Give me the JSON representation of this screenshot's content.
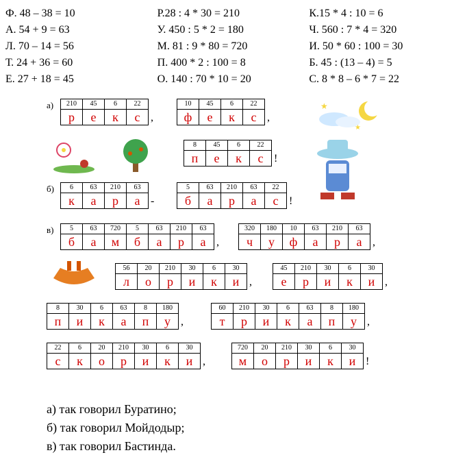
{
  "equations": {
    "col1": [
      "Ф. 48 – 38 = 10",
      "А. 54 + 9 = 63",
      "Л. 70 – 14 = 56",
      "Т. 24 + 36 = 60",
      "Е. 27 + 18 = 45"
    ],
    "col2": [
      "Р.28 : 4 * 30 = 210",
      "У. 450 : 5 * 2 = 180",
      "М. 81 : 9 * 80 = 720",
      "П. 400 * 2 : 100 = 8",
      "О. 140 : 70 * 10 = 20"
    ],
    "col3": [
      "К.15 * 4 : 10 = 6",
      "Ч. 560 : 7 * 4 = 320",
      "И. 50 * 60 : 100 = 30",
      "Б. 45 : (13 – 4) = 5",
      "С. 8 * 8 – 6 * 7 = 22"
    ]
  },
  "labels": {
    "a": "а)",
    "b": "б)",
    "v": "в)"
  },
  "puzzles": {
    "a1": {
      "nums": [
        "210",
        "45",
        "6",
        "22"
      ],
      "lets": [
        "р",
        "е",
        "к",
        "с"
      ],
      "punct": ","
    },
    "a2": {
      "nums": [
        "10",
        "45",
        "6",
        "22"
      ],
      "lets": [
        "ф",
        "е",
        "к",
        "с"
      ],
      "punct": ","
    },
    "a3": {
      "nums": [
        "8",
        "45",
        "6",
        "22"
      ],
      "lets": [
        "п",
        "е",
        "к",
        "с"
      ],
      "punct": "!"
    },
    "b1": {
      "nums": [
        "6",
        "63",
        "210",
        "63"
      ],
      "lets": [
        "к",
        "а",
        "р",
        "а"
      ],
      "punct": "-"
    },
    "b2": {
      "nums": [
        "5",
        "63",
        "210",
        "63",
        "22"
      ],
      "lets": [
        "б",
        "а",
        "р",
        "а",
        "с"
      ],
      "punct": "!"
    },
    "v1": {
      "nums": [
        "5",
        "63",
        "720",
        "5",
        "63",
        "210",
        "63"
      ],
      "lets": [
        "б",
        "а",
        "м",
        "б",
        "а",
        "р",
        "а"
      ],
      "punct": ","
    },
    "v2": {
      "nums": [
        "320",
        "180",
        "10",
        "63",
        "210",
        "63"
      ],
      "lets": [
        "ч",
        "у",
        "ф",
        "а",
        "р",
        "а"
      ],
      "punct": ","
    },
    "v3": {
      "nums": [
        "56",
        "20",
        "210",
        "30",
        "6",
        "30"
      ],
      "lets": [
        "л",
        "о",
        "р",
        "и",
        "к",
        "и"
      ],
      "punct": ","
    },
    "v4": {
      "nums": [
        "45",
        "210",
        "30",
        "6",
        "30"
      ],
      "lets": [
        "е",
        "р",
        "и",
        "к",
        "и"
      ],
      "punct": ","
    },
    "v5": {
      "nums": [
        "8",
        "30",
        "6",
        "63",
        "8",
        "180"
      ],
      "lets": [
        "п",
        "и",
        "к",
        "а",
        "п",
        "у"
      ],
      "punct": ","
    },
    "v6": {
      "nums": [
        "60",
        "210",
        "30",
        "6",
        "63",
        "8",
        "180"
      ],
      "lets": [
        "т",
        "р",
        "и",
        "к",
        "а",
        "п",
        "у"
      ],
      "punct": ","
    },
    "v7": {
      "nums": [
        "22",
        "6",
        "20",
        "210",
        "30",
        "6",
        "30"
      ],
      "lets": [
        "с",
        "к",
        "о",
        "р",
        "и",
        "к",
        "и"
      ],
      "punct": ","
    },
    "v8": {
      "nums": [
        "720",
        "20",
        "210",
        "30",
        "6",
        "30"
      ],
      "lets": [
        "м",
        "о",
        "р",
        "и",
        "к",
        "и"
      ],
      "punct": "!"
    }
  },
  "answers": {
    "a": "а) так говорил Буратино;",
    "b": "б) так говорил Мойдодыр;",
    "v": "в) так говорил Бастинда."
  },
  "colors": {
    "letter": "#d00000",
    "border": "#000000",
    "bg": "#ffffff"
  }
}
